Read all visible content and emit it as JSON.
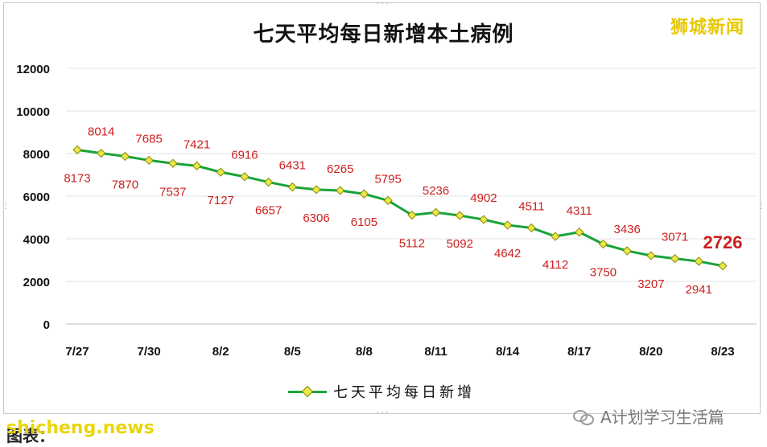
{
  "title": "七天平均每日新增本土病例",
  "brand": "狮城新闻",
  "legend_label": "七天平均每日新增",
  "footer_left_text": "图表：",
  "footer_left_overlay": "shicheng.news",
  "footer_right": "A计划学习生活篇",
  "colors": {
    "line": "#1aa33a",
    "marker_fill": "#e8e84a",
    "marker_stroke": "#8a8a00",
    "label": "#cc1f1f",
    "brand": "#e8c800"
  },
  "chart_data": {
    "type": "line",
    "title": "七天平均每日新增本土病例",
    "xlabel": "",
    "ylabel": "",
    "ylim": [
      0,
      12000
    ],
    "yticks": [
      0,
      2000,
      4000,
      6000,
      8000,
      10000,
      12000
    ],
    "ytick_labels": [
      "0",
      "2000",
      "4000",
      "6000",
      "8000",
      "10000",
      "12000"
    ],
    "xtick_labels": [
      "7/27",
      "7/30",
      "8/2",
      "8/5",
      "8/8",
      "8/11",
      "8/14",
      "8/17",
      "8/20",
      "8/23"
    ],
    "grid": true,
    "legend_placement": "bottom",
    "series": [
      {
        "name": "七天平均每日新增",
        "x": [
          "7/27",
          "7/28",
          "7/29",
          "7/30",
          "7/31",
          "8/1",
          "8/2",
          "8/3",
          "8/4",
          "8/5",
          "8/6",
          "8/7",
          "8/8",
          "8/9",
          "8/10",
          "8/11",
          "8/12",
          "8/13",
          "8/14",
          "8/15",
          "8/16",
          "8/17",
          "8/18",
          "8/19",
          "8/20",
          "8/21",
          "8/22",
          "8/23"
        ],
        "values": [
          8173,
          8014,
          7870,
          7685,
          7537,
          7421,
          7127,
          6916,
          6657,
          6431,
          6306,
          6265,
          6105,
          5795,
          5112,
          5236,
          5092,
          4902,
          4642,
          4511,
          4112,
          4311,
          3750,
          3436,
          3207,
          3071,
          2941,
          2726
        ],
        "label_positions": [
          "below",
          "above",
          "below",
          "above",
          "below",
          "above",
          "below",
          "above",
          "below",
          "above",
          "below",
          "above",
          "below",
          "above",
          "below",
          "above",
          "below",
          "above",
          "below",
          "above",
          "below",
          "above",
          "below",
          "above",
          "below",
          "above",
          "below",
          "above"
        ]
      }
    ]
  }
}
